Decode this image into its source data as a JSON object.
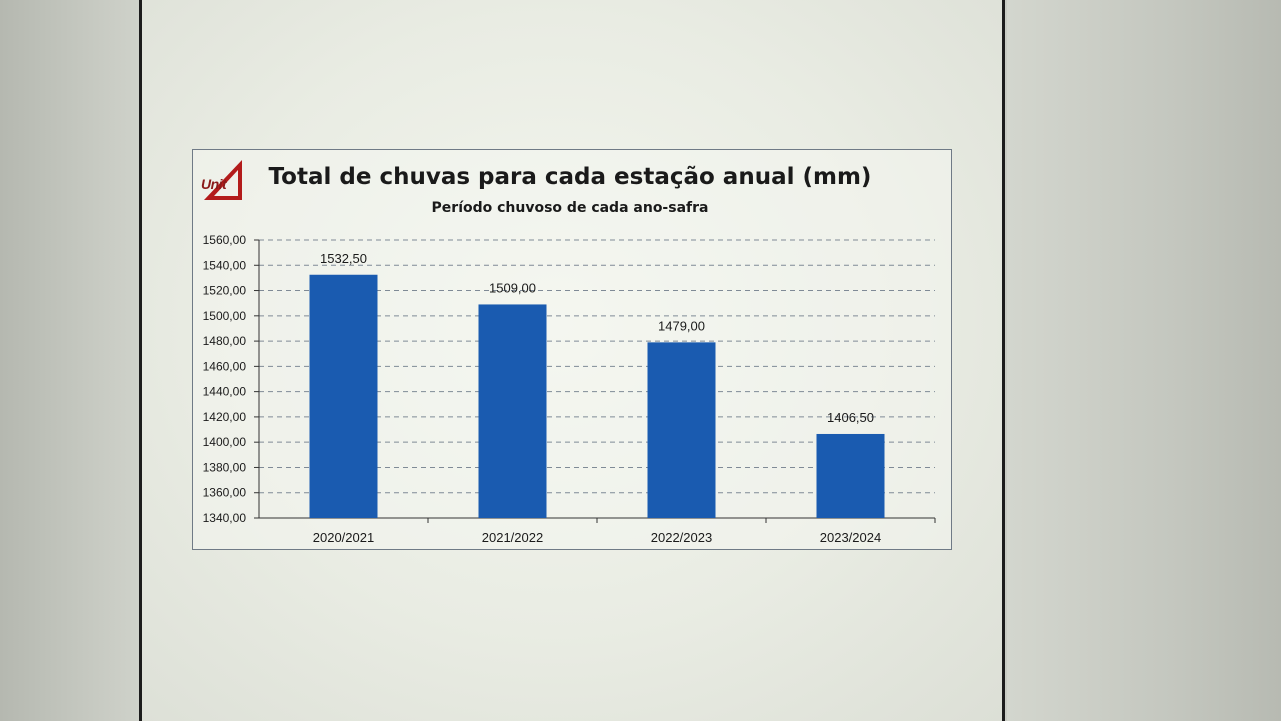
{
  "logo_text": "Unit",
  "chart_data": {
    "type": "bar",
    "title": "Total de chuvas para cada estação anual (mm)",
    "subtitle": "Período chuvoso de cada ano-safra",
    "categories": [
      "2020/2021",
      "2021/2022",
      "2022/2023",
      "2023/2024"
    ],
    "values": [
      1532.5,
      1509.0,
      1479.0,
      1406.5
    ],
    "value_labels": [
      "1532,50",
      "1509,00",
      "1479,00",
      "1406,50"
    ],
    "ylim": [
      1340,
      1560
    ],
    "y_ticks": [
      1340,
      1360,
      1380,
      1400,
      1420,
      1440,
      1460,
      1480,
      1500,
      1520,
      1540,
      1560
    ],
    "y_tick_labels": [
      "1340,00",
      "1360,00",
      "1380,00",
      "1400,00",
      "1420,00",
      "1440,00",
      "1460,00",
      "1480,00",
      "1500,00",
      "1520,00",
      "1540,00",
      "1560,00"
    ],
    "grid": true,
    "legend": "none",
    "bar_color": "#1a5bb0"
  }
}
